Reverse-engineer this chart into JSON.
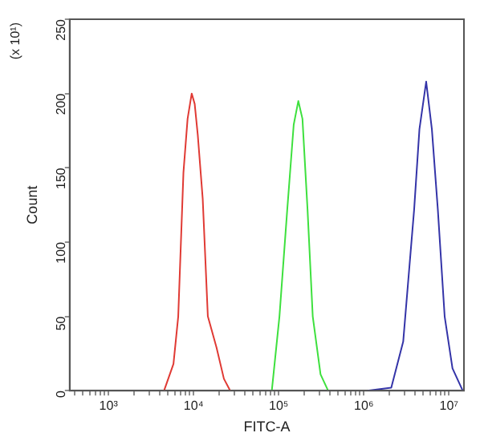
{
  "chart_data": {
    "type": "line",
    "xlabel": "FITC-A",
    "ylabel": "Count",
    "annotations": [
      "(x 10¹)"
    ],
    "log": "x",
    "grid": false,
    "legend": false,
    "marker": "none",
    "line_style": "solid",
    "xlim": [
      350,
      15000000
    ],
    "ylim": [
      0,
      250
    ],
    "yticks": [
      0,
      50,
      100,
      150,
      200,
      250
    ],
    "xticks": [
      {
        "value": 400,
        "label": null
      },
      {
        "value": 500,
        "label": null
      },
      {
        "value": 600,
        "label": null
      },
      {
        "value": 700,
        "label": null
      },
      {
        "value": 800,
        "label": null
      },
      {
        "value": 900,
        "label": null
      },
      {
        "value": 1000,
        "label": "10³"
      },
      {
        "value": 2000,
        "label": null
      },
      {
        "value": 3000,
        "label": null
      },
      {
        "value": 4000,
        "label": null
      },
      {
        "value": 5000,
        "label": null
      },
      {
        "value": 6000,
        "label": null
      },
      {
        "value": 7000,
        "label": null
      },
      {
        "value": 8000,
        "label": null
      },
      {
        "value": 9000,
        "label": null
      },
      {
        "value": 10000,
        "label": "10⁴"
      },
      {
        "value": 20000,
        "label": null
      },
      {
        "value": 30000,
        "label": null
      },
      {
        "value": 40000,
        "label": null
      },
      {
        "value": 50000,
        "label": null
      },
      {
        "value": 60000,
        "label": null
      },
      {
        "value": 70000,
        "label": null
      },
      {
        "value": 80000,
        "label": null
      },
      {
        "value": 90000,
        "label": null
      },
      {
        "value": 100000,
        "label": "10⁵"
      },
      {
        "value": 200000,
        "label": null
      },
      {
        "value": 300000,
        "label": null
      },
      {
        "value": 400000,
        "label": null
      },
      {
        "value": 500000,
        "label": null
      },
      {
        "value": 600000,
        "label": null
      },
      {
        "value": 700000,
        "label": null
      },
      {
        "value": 800000,
        "label": null
      },
      {
        "value": 900000,
        "label": null
      },
      {
        "value": 1000000,
        "label": "10⁶"
      },
      {
        "value": 2000000,
        "label": null
      },
      {
        "value": 3000000,
        "label": null
      },
      {
        "value": 4000000,
        "label": null
      },
      {
        "value": 5000000,
        "label": null
      },
      {
        "value": 6000000,
        "label": null
      },
      {
        "value": 7000000,
        "label": null
      },
      {
        "value": 8000000,
        "label": null
      },
      {
        "value": 9000000,
        "label": null
      },
      {
        "value": 10000000,
        "label": "10⁷"
      }
    ],
    "series": [
      {
        "color": "#e03a34",
        "x": [
          4500,
          5800,
          6600,
          7600,
          8500,
          9500,
          10300,
          11200,
          12800,
          14700,
          18600,
          22700,
          26900
        ],
        "values": [
          0,
          18,
          50,
          147,
          183,
          200,
          193,
          172,
          129,
          50,
          29,
          8,
          0
        ]
      },
      {
        "color": "#3ee03e",
        "x": [
          83000,
          102000,
          126000,
          150000,
          170000,
          190000,
          218000,
          251000,
          310000,
          380000
        ],
        "values": [
          0,
          50,
          122,
          179,
          195,
          183,
          122,
          50,
          11,
          0
        ]
      },
      {
        "color": "#3434a8",
        "x": [
          1100000,
          2100000,
          2900000,
          3900000,
          4500000,
          5400000,
          6300000,
          7400000,
          8900000,
          11000000,
          14500000
        ],
        "values": [
          0,
          2,
          33,
          122,
          176,
          208,
          176,
          122,
          50,
          15,
          0
        ]
      }
    ]
  }
}
